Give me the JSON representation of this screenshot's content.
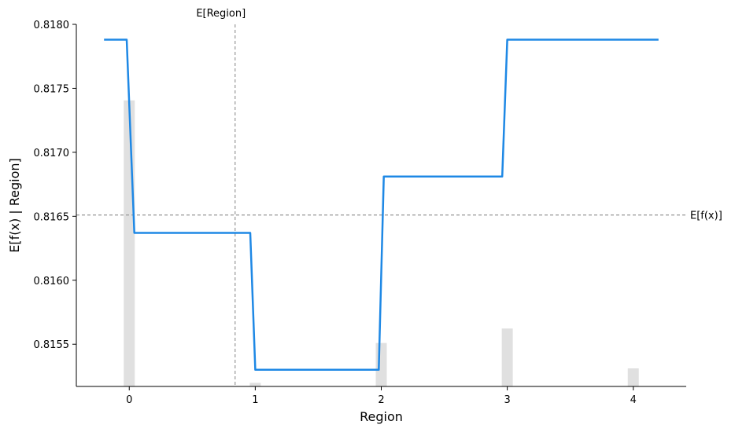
{
  "chart_data": {
    "type": "line",
    "xlabel": "Region",
    "ylabel": "E[f(x) | Region]",
    "xlim": [
      -0.42,
      4.42
    ],
    "ylim": [
      0.81517,
      0.818
    ],
    "x_ticks": [
      0,
      1,
      2,
      3,
      4
    ],
    "x_tick_labels": [
      "0",
      "1",
      "2",
      "3",
      "4"
    ],
    "y_ticks": [
      0.8155,
      0.816,
      0.8165,
      0.817,
      0.8175,
      0.818
    ],
    "y_tick_labels": [
      "0.8155",
      "0.8160",
      "0.8165",
      "0.8170",
      "0.8175",
      "0.8180"
    ],
    "series": [
      {
        "color": "#1e88e5",
        "x": [
          -0.2,
          -0.02,
          0.04,
          0.96,
          1.0,
          1.98,
          2.02,
          2.96,
          3.0,
          4.2
        ],
        "y": [
          0.81788,
          0.81788,
          0.81637,
          0.81637,
          0.8153,
          0.8153,
          0.81681,
          0.81681,
          0.81788,
          0.81788
        ]
      }
    ],
    "histogram": {
      "color": "#e0e0e0",
      "x": [
        0,
        1,
        2,
        3,
        4
      ],
      "heights": [
        0.79,
        0.01,
        0.12,
        0.16,
        0.05
      ]
    },
    "reference_lines": [
      {
        "orientation": "vertical",
        "value": 0.84,
        "label": "E[Region]",
        "color": "#999999"
      },
      {
        "orientation": "horizontal",
        "value": 0.81651,
        "label": "E[f(x)]",
        "color": "#999999"
      }
    ],
    "grid": false,
    "legend": "none"
  }
}
